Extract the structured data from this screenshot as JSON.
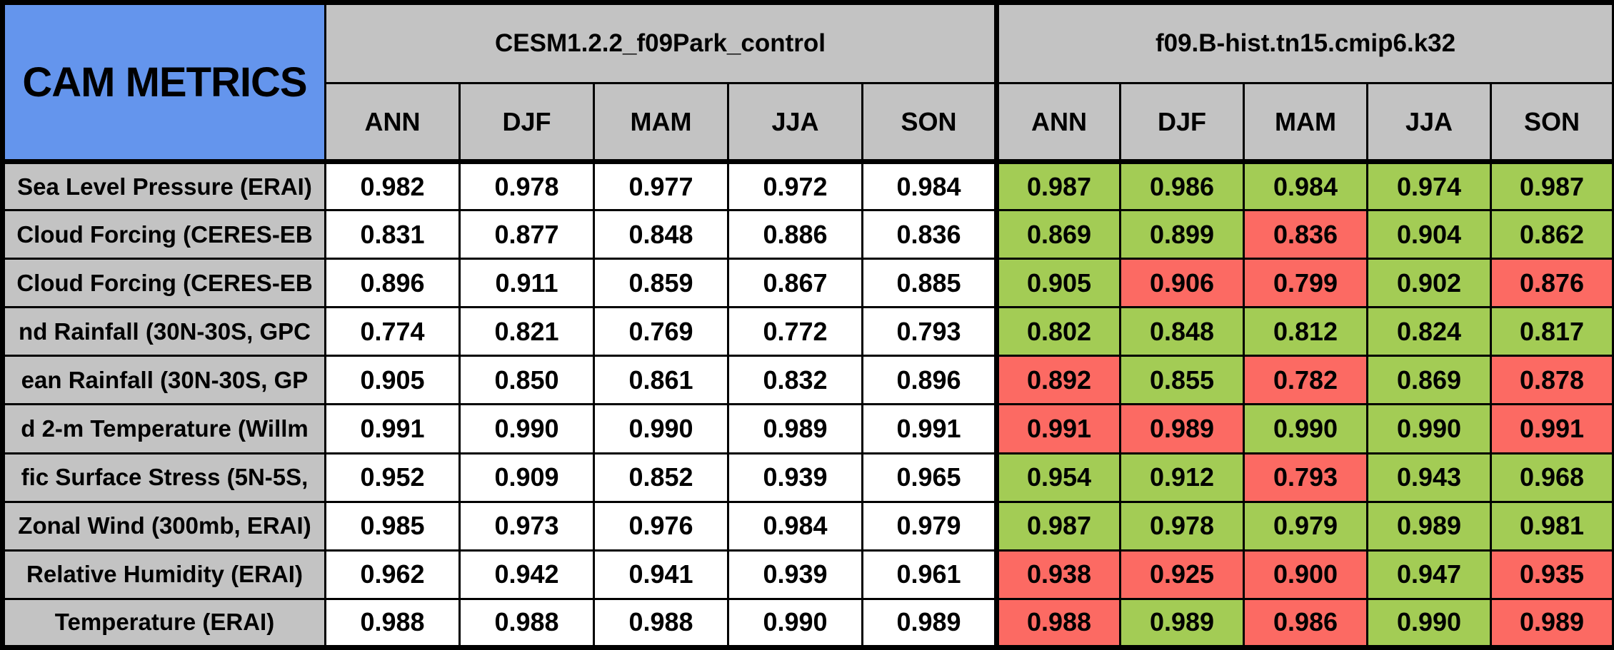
{
  "colors": {
    "corner_blue": "#6495ED",
    "header_gray": "#C3C3C3",
    "cell_green": "#A3CC55",
    "cell_red": "#FC6A63",
    "control_cell_white": "#FFFFFF",
    "border_black": "#000000"
  },
  "chart_data": {
    "type": "table",
    "title": "CAM METRICS",
    "column_groups": [
      {
        "name": "CESM1.2.2_f09Park_control",
        "seasons": [
          "ANN",
          "DJF",
          "MAM",
          "JJA",
          "SON"
        ]
      },
      {
        "name": "f09.B-hist.tn15.cmip6.k32",
        "seasons": [
          "ANN",
          "DJF",
          "MAM",
          "JJA",
          "SON"
        ]
      }
    ],
    "rows": [
      {
        "label": "Sea Level Pressure (ERAI)",
        "control_values": [
          "0.982",
          "0.978",
          "0.977",
          "0.972",
          "0.984"
        ],
        "test_values": [
          "0.987",
          "0.986",
          "0.984",
          "0.974",
          "0.987"
        ],
        "test_colors": [
          "green",
          "green",
          "green",
          "green",
          "green"
        ]
      },
      {
        "label": "Cloud Forcing (CERES-EB",
        "control_values": [
          "0.831",
          "0.877",
          "0.848",
          "0.886",
          "0.836"
        ],
        "test_values": [
          "0.869",
          "0.899",
          "0.836",
          "0.904",
          "0.862"
        ],
        "test_colors": [
          "green",
          "green",
          "red",
          "green",
          "green"
        ]
      },
      {
        "label": "Cloud Forcing (CERES-EB",
        "control_values": [
          "0.896",
          "0.911",
          "0.859",
          "0.867",
          "0.885"
        ],
        "test_values": [
          "0.905",
          "0.906",
          "0.799",
          "0.902",
          "0.876"
        ],
        "test_colors": [
          "green",
          "red",
          "red",
          "green",
          "red"
        ]
      },
      {
        "label": "nd Rainfall (30N-30S, GPC",
        "control_values": [
          "0.774",
          "0.821",
          "0.769",
          "0.772",
          "0.793"
        ],
        "test_values": [
          "0.802",
          "0.848",
          "0.812",
          "0.824",
          "0.817"
        ],
        "test_colors": [
          "green",
          "green",
          "green",
          "green",
          "green"
        ]
      },
      {
        "label": "ean Rainfall (30N-30S, GP",
        "control_values": [
          "0.905",
          "0.850",
          "0.861",
          "0.832",
          "0.896"
        ],
        "test_values": [
          "0.892",
          "0.855",
          "0.782",
          "0.869",
          "0.878"
        ],
        "test_colors": [
          "red",
          "green",
          "red",
          "green",
          "red"
        ]
      },
      {
        "label": "d 2-m Temperature (Willm",
        "control_values": [
          "0.991",
          "0.990",
          "0.990",
          "0.989",
          "0.991"
        ],
        "test_values": [
          "0.991",
          "0.989",
          "0.990",
          "0.990",
          "0.991"
        ],
        "test_colors": [
          "red",
          "red",
          "green",
          "green",
          "red"
        ]
      },
      {
        "label": "fic Surface Stress (5N-5S,",
        "control_values": [
          "0.952",
          "0.909",
          "0.852",
          "0.939",
          "0.965"
        ],
        "test_values": [
          "0.954",
          "0.912",
          "0.793",
          "0.943",
          "0.968"
        ],
        "test_colors": [
          "green",
          "green",
          "red",
          "green",
          "green"
        ]
      },
      {
        "label": "Zonal Wind (300mb, ERAI)",
        "control_values": [
          "0.985",
          "0.973",
          "0.976",
          "0.984",
          "0.979"
        ],
        "test_values": [
          "0.987",
          "0.978",
          "0.979",
          "0.989",
          "0.981"
        ],
        "test_colors": [
          "green",
          "green",
          "green",
          "green",
          "green"
        ]
      },
      {
        "label": "Relative Humidity (ERAI)",
        "control_values": [
          "0.962",
          "0.942",
          "0.941",
          "0.939",
          "0.961"
        ],
        "test_values": [
          "0.938",
          "0.925",
          "0.900",
          "0.947",
          "0.935"
        ],
        "test_colors": [
          "red",
          "red",
          "red",
          "green",
          "red"
        ]
      },
      {
        "label": "Temperature (ERAI)",
        "control_values": [
          "0.988",
          "0.988",
          "0.988",
          "0.990",
          "0.989"
        ],
        "test_values": [
          "0.988",
          "0.989",
          "0.986",
          "0.990",
          "0.989"
        ],
        "test_colors": [
          "red",
          "green",
          "red",
          "green",
          "red"
        ]
      }
    ]
  }
}
